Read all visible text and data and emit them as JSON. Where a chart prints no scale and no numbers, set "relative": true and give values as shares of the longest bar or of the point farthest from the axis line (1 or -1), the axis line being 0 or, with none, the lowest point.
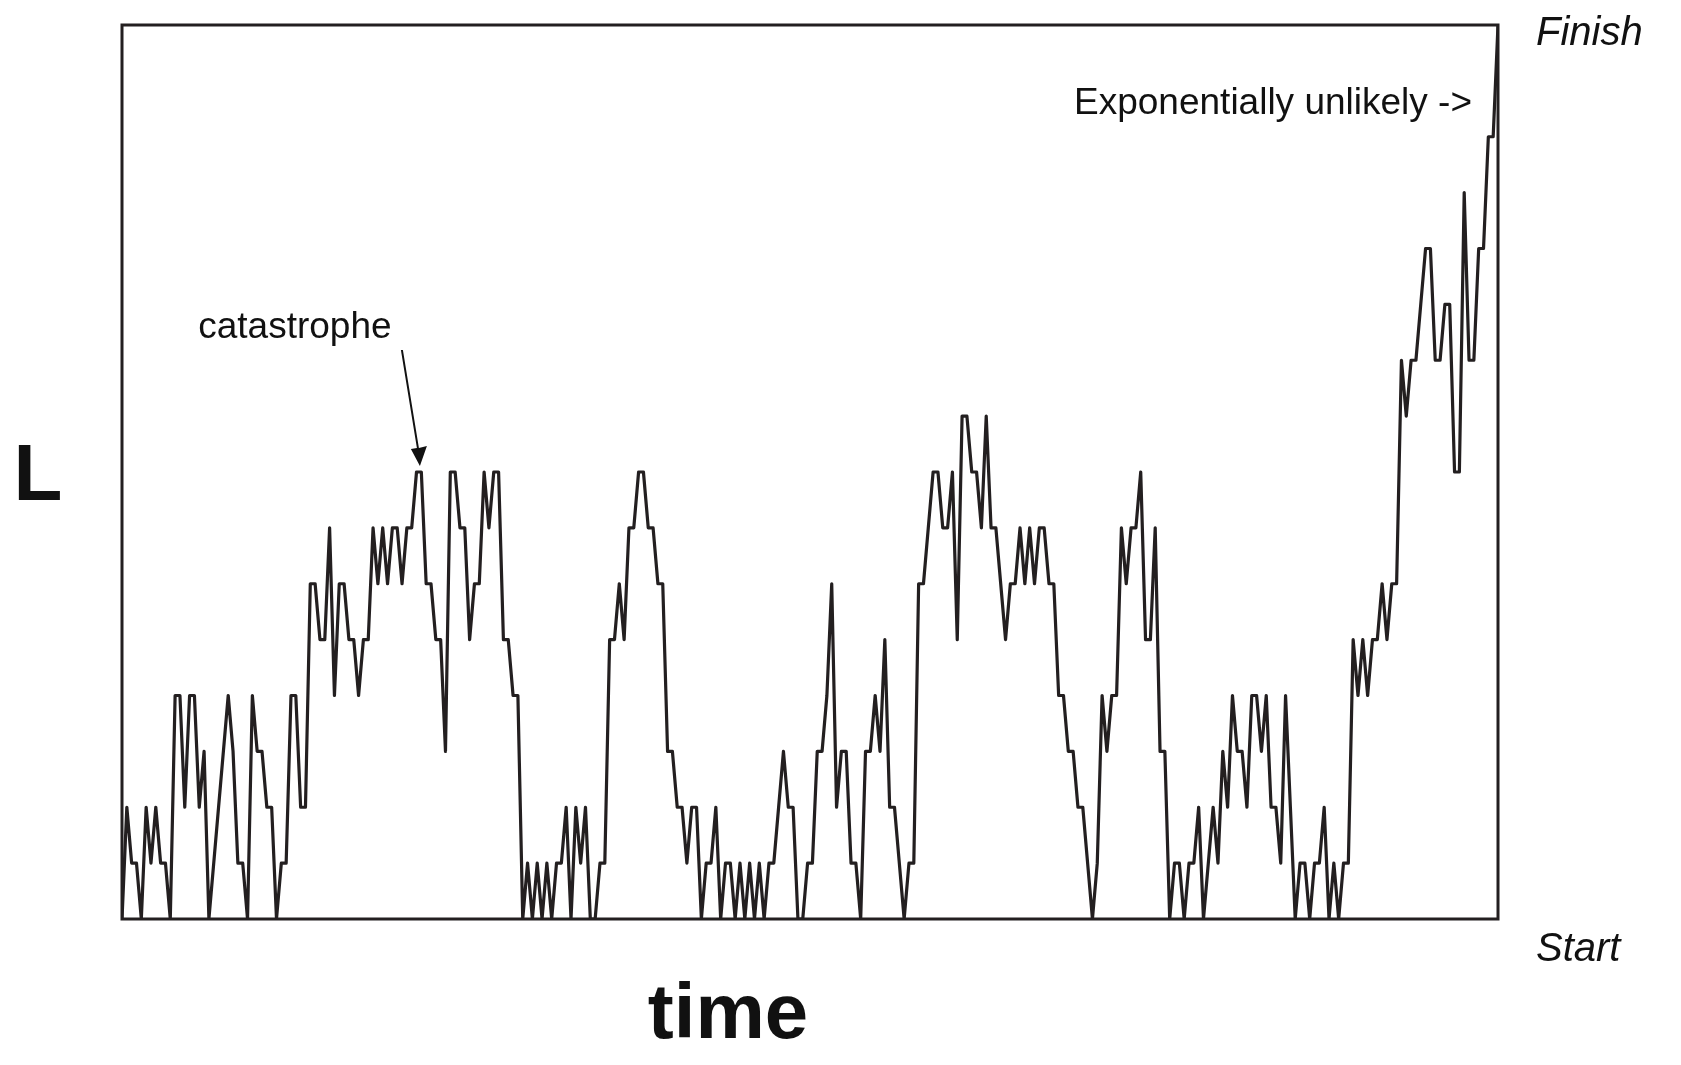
{
  "chart_data": {
    "type": "line",
    "relative": true,
    "xlabel": "time",
    "ylabel": "L",
    "grid": false,
    "legend": false,
    "marker": "none",
    "line_style": "solid",
    "annotations": [
      "catastrophe",
      "Exponentially unlikely  ->",
      "Finish",
      "Start"
    ],
    "categories": [
      null,
      null,
      null,
      null,
      null,
      null,
      null,
      null,
      null,
      null,
      null,
      null,
      null,
      null,
      null,
      null,
      null,
      null,
      null,
      null,
      null,
      null,
      null,
      null,
      null,
      null,
      null,
      null,
      null,
      null,
      null,
      null,
      null,
      null,
      null,
      null,
      null,
      null,
      null,
      null,
      null,
      null,
      null,
      null,
      null,
      null,
      null,
      null,
      null,
      null,
      null,
      null,
      null,
      null,
      null,
      null,
      null,
      null,
      null,
      null,
      null,
      null,
      null,
      null,
      null,
      null,
      null,
      null,
      null,
      null,
      null,
      null,
      null,
      null,
      null,
      null,
      null,
      null,
      null,
      null,
      null,
      null,
      null,
      null,
      null,
      null,
      null,
      null,
      null,
      null,
      null,
      null,
      null,
      null,
      null,
      null,
      null,
      null,
      null,
      null,
      null,
      null,
      null,
      null,
      null,
      null,
      null,
      null,
      null,
      null,
      null,
      null,
      null,
      null,
      null,
      null,
      null,
      null,
      null,
      null,
      null,
      null,
      null,
      null,
      null,
      null,
      null,
      null,
      null,
      null,
      null,
      null,
      null,
      null,
      null,
      null,
      null,
      null,
      null,
      null,
      null,
      null,
      null,
      null,
      null,
      null,
      null,
      null,
      null,
      null,
      null,
      null,
      null,
      null,
      null,
      null,
      null,
      null,
      null,
      null,
      null,
      null,
      null,
      null,
      null,
      null,
      null,
      null,
      null,
      null,
      null,
      null,
      null,
      null,
      null,
      null,
      null,
      null,
      null,
      null,
      null,
      null,
      null,
      null,
      null,
      null,
      null,
      null,
      null,
      null,
      null,
      null,
      null,
      null,
      null,
      null,
      null,
      null,
      null,
      null,
      null,
      null,
      null,
      null,
      null,
      null,
      null,
      null,
      null,
      null,
      null,
      null,
      null,
      null,
      null,
      null,
      null,
      null,
      null,
      null,
      null,
      null,
      null,
      null,
      null,
      null,
      null,
      null,
      null,
      null,
      null,
      null,
      null,
      null,
      null,
      null,
      null,
      null,
      null,
      null,
      null,
      null,
      null,
      null,
      null,
      null,
      null,
      null,
      null,
      null,
      null,
      null,
      null,
      null,
      null,
      null,
      null,
      null,
      null,
      null,
      null,
      null,
      null,
      null,
      null,
      null,
      null,
      null,
      null,
      null,
      null,
      null,
      null,
      null,
      null,
      null,
      null,
      null,
      null,
      null,
      null,
      null,
      null,
      null,
      null,
      null
    ],
    "series": [
      {
        "color": "#231f20",
        "values": [
          0,
          0.125,
          0.0625,
          0.0625,
          0,
          0.125,
          0.0625,
          0.125,
          0.0625,
          0.0625,
          0,
          0.25,
          0.25,
          0.125,
          0.25,
          0.25,
          0.125,
          0.1875,
          0,
          0.0625,
          0.125,
          0.1875,
          0.25,
          0.1875,
          0.0625,
          0.0625,
          0,
          0.25,
          0.1875,
          0.1875,
          0.125,
          0.125,
          0,
          0.0625,
          0.0625,
          0.25,
          0.25,
          0.125,
          0.125,
          0.375,
          0.375,
          0.3125,
          0.3125,
          0.4375,
          0.25,
          0.375,
          0.375,
          0.3125,
          0.3125,
          0.25,
          0.3125,
          0.3125,
          0.4375,
          0.375,
          0.4375,
          0.375,
          0.4375,
          0.4375,
          0.375,
          0.4375,
          0.4375,
          0.5,
          0.5,
          0.375,
          0.375,
          0.3125,
          0.3125,
          0.1875,
          0.5,
          0.5,
          0.4375,
          0.4375,
          0.3125,
          0.375,
          0.375,
          0.5,
          0.4375,
          0.5,
          0.5,
          0.3125,
          0.3125,
          0.25,
          0.25,
          0,
          0.0625,
          0,
          0.0625,
          0,
          0.0625,
          0,
          0.0625,
          0.0625,
          0.125,
          0,
          0.125,
          0.0625,
          0.125,
          0,
          0,
          0.0625,
          0.0625,
          0.3125,
          0.3125,
          0.375,
          0.3125,
          0.4375,
          0.4375,
          0.5,
          0.5,
          0.4375,
          0.4375,
          0.375,
          0.375,
          0.1875,
          0.1875,
          0.125,
          0.125,
          0.0625,
          0.125,
          0.125,
          0,
          0.0625,
          0.0625,
          0.125,
          0,
          0.0625,
          0.0625,
          0,
          0.0625,
          0,
          0.0625,
          0,
          0.0625,
          0,
          0.0625,
          0.0625,
          0.125,
          0.1875,
          0.125,
          0.125,
          0,
          0,
          0.0625,
          0.0625,
          0.1875,
          0.1875,
          0.25,
          0.375,
          0.125,
          0.1875,
          0.1875,
          0.0625,
          0.0625,
          0,
          0.1875,
          0.1875,
          0.25,
          0.1875,
          0.3125,
          0.125,
          0.125,
          0.0625,
          0,
          0.0625,
          0.0625,
          0.375,
          0.375,
          0.4375,
          0.5,
          0.5,
          0.4375,
          0.4375,
          0.5,
          0.3125,
          0.5625,
          0.5625,
          0.5,
          0.5,
          0.4375,
          0.5625,
          0.4375,
          0.4375,
          0.375,
          0.3125,
          0.375,
          0.375,
          0.4375,
          0.375,
          0.4375,
          0.375,
          0.4375,
          0.4375,
          0.375,
          0.375,
          0.25,
          0.25,
          0.1875,
          0.1875,
          0.125,
          0.125,
          0.0625,
          0,
          0.0625,
          0.25,
          0.1875,
          0.25,
          0.25,
          0.4375,
          0.375,
          0.4375,
          0.4375,
          0.5,
          0.3125,
          0.3125,
          0.4375,
          0.1875,
          0.1875,
          0,
          0.0625,
          0.0625,
          0,
          0.0625,
          0.0625,
          0.125,
          0,
          0.0625,
          0.125,
          0.0625,
          0.1875,
          0.125,
          0.25,
          0.1875,
          0.1875,
          0.125,
          0.25,
          0.25,
          0.1875,
          0.25,
          0.125,
          0.125,
          0.0625,
          0.25,
          0.125,
          0,
          0.0625,
          0.0625,
          0,
          0.0625,
          0.0625,
          0.125,
          0,
          0.0625,
          0,
          0.0625,
          0.0625,
          0.3125,
          0.25,
          0.3125,
          0.25,
          0.3125,
          0.3125,
          0.375,
          0.3125,
          0.375,
          0.375,
          0.625,
          0.5625,
          0.625,
          0.625,
          0.6875,
          0.75,
          0.75,
          0.625,
          0.625,
          0.6875,
          0.6875,
          0.5,
          0.5,
          0.8125,
          0.625,
          0.625,
          0.75,
          0.75,
          0.875,
          0.875,
          1
        ]
      }
    ]
  }
}
